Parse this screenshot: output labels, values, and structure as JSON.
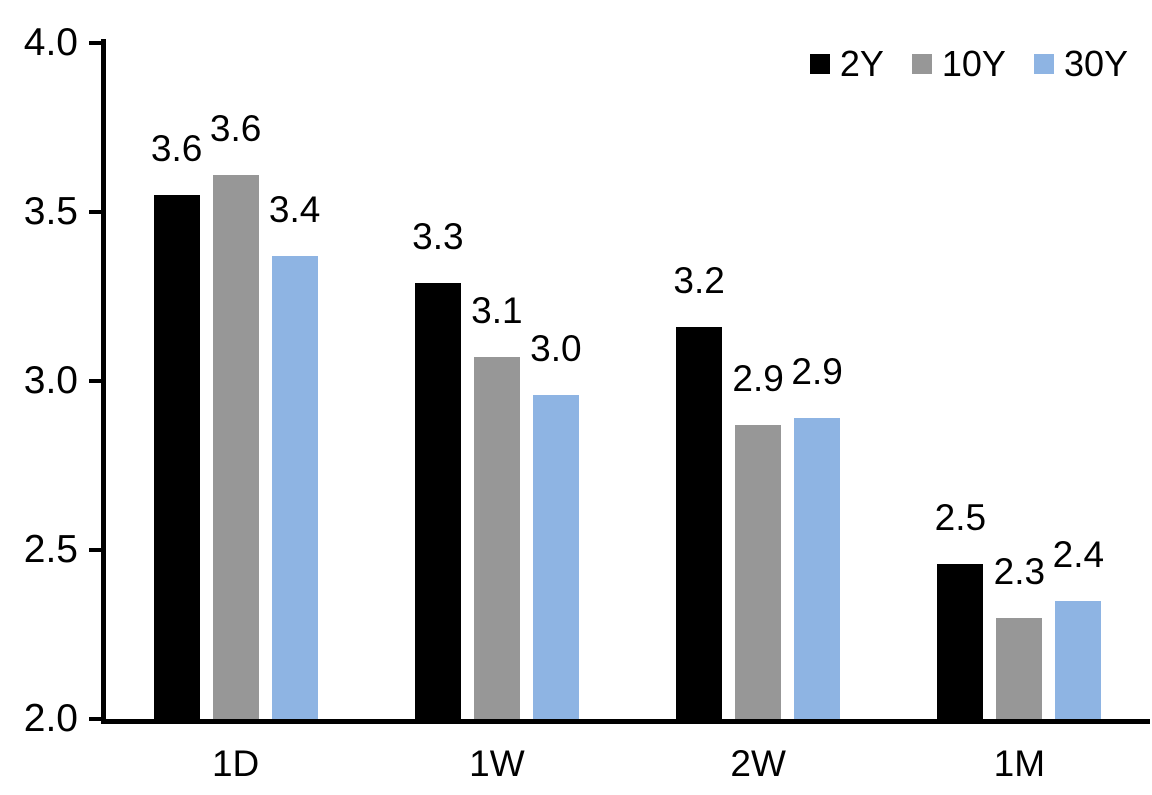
{
  "chart_data": {
    "type": "bar",
    "title": "",
    "xlabel": "",
    "ylabel": "",
    "categories": [
      "1D",
      "1W",
      "2W",
      "1M"
    ],
    "series": [
      {
        "name": "2Y",
        "color": "#000000",
        "values": [
          3.55,
          3.29,
          3.16,
          2.46
        ],
        "labels": [
          "3.6",
          "3.3",
          "3.2",
          "2.5"
        ]
      },
      {
        "name": "10Y",
        "color": "#979797",
        "values": [
          3.61,
          3.07,
          2.87,
          2.3
        ],
        "labels": [
          "3.6",
          "3.1",
          "2.9",
          "2.3"
        ]
      },
      {
        "name": "30Y",
        "color": "#8EB4E3",
        "values": [
          3.37,
          2.96,
          2.89,
          2.35
        ],
        "labels": [
          "3.4",
          "3.0",
          "2.9",
          "2.4"
        ]
      }
    ],
    "ylim": [
      2.0,
      4.0
    ],
    "ytick_step": 0.5,
    "yticks": [
      "4.0",
      "3.5",
      "3.0",
      "2.5",
      "2.0"
    ],
    "grid": false,
    "legend_position": "top-right",
    "axis_color": "#000000",
    "background_color": "#FFFFFF",
    "text_color": "#000000"
  }
}
